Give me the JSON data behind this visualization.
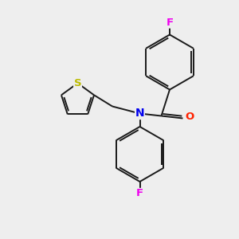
{
  "background_color": "#eeeeee",
  "bond_color": "#1a1a1a",
  "N_color": "#0000ee",
  "O_color": "#ff2200",
  "S_color": "#bbbb00",
  "F_color": "#ee00ee",
  "line_width": 1.4,
  "figsize": [
    3.0,
    3.0
  ],
  "dpi": 100,
  "xlim": [
    0,
    10
  ],
  "ylim": [
    0,
    10
  ]
}
